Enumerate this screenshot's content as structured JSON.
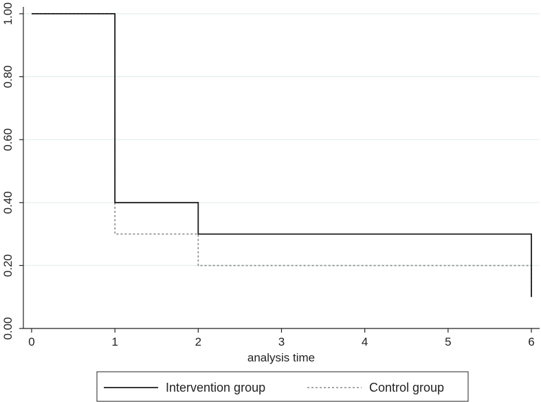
{
  "chart_data": {
    "type": "line",
    "title": "",
    "xlabel": "analysis time",
    "ylabel": "",
    "xlim": [
      0,
      6
    ],
    "ylim": [
      0,
      1
    ],
    "x_ticks": [
      0,
      1,
      2,
      3,
      4,
      5,
      6
    ],
    "x_tick_labels": [
      "0",
      "1",
      "2",
      "3",
      "4",
      "5",
      "6"
    ],
    "y_ticks": [
      0,
      0.2,
      0.4,
      0.6,
      0.8,
      1.0
    ],
    "y_tick_labels": [
      "0.00",
      "0.20",
      "0.40",
      "0.60",
      "0.80",
      "1.00"
    ],
    "grid": true,
    "step": true,
    "legend_position": "bottom",
    "series": [
      {
        "name": "Intervention group",
        "line_style": "solid",
        "color": "#1a1a1a",
        "points": [
          [
            0,
            1.0
          ],
          [
            1,
            1.0
          ],
          [
            1,
            0.4
          ],
          [
            2,
            0.4
          ],
          [
            2,
            0.3
          ],
          [
            6,
            0.3
          ],
          [
            6,
            0.1
          ]
        ]
      },
      {
        "name": "Control group",
        "line_style": "dotted",
        "color": "#888888",
        "points": [
          [
            0,
            1.0
          ],
          [
            1,
            1.0
          ],
          [
            1,
            0.3
          ],
          [
            2,
            0.3
          ],
          [
            2,
            0.2
          ],
          [
            6,
            0.2
          ],
          [
            6,
            0.1
          ]
        ]
      }
    ],
    "colors": {
      "grid": "#e3eeee",
      "axis": "#222222"
    }
  }
}
